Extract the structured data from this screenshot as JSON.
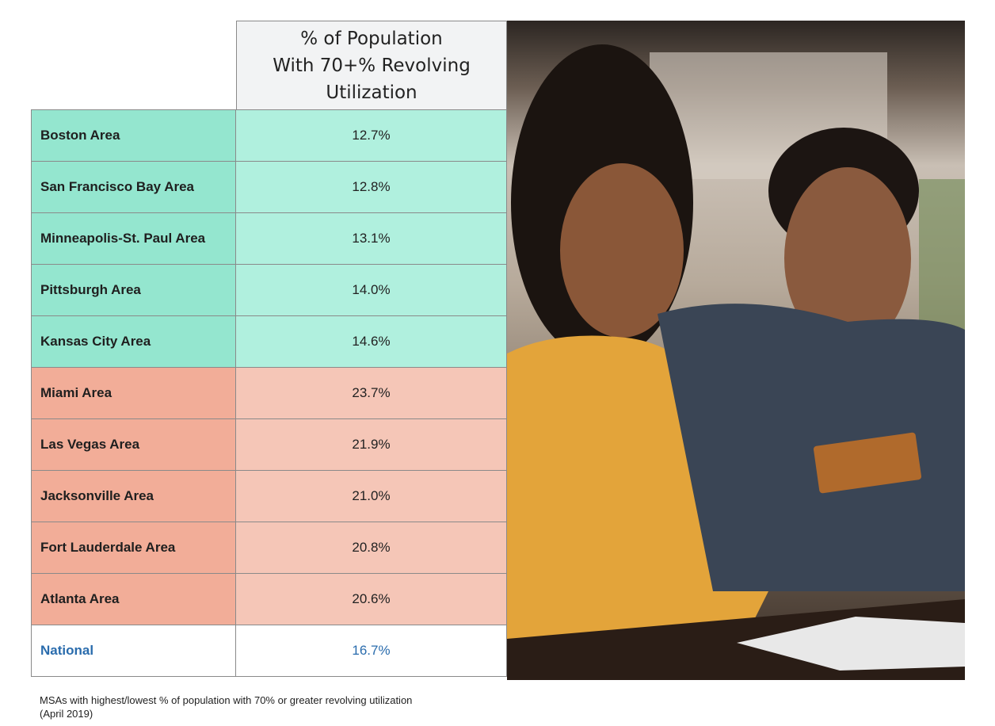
{
  "chart_data": {
    "type": "table",
    "title": "",
    "columns": [
      "",
      "% of Population\nWith 70+% Revolving\nUtilization"
    ],
    "rows": [
      {
        "label": "Boston Area",
        "value": "12.7%",
        "group": "lowest"
      },
      {
        "label": "San Francisco Bay Area",
        "value": "12.8%",
        "group": "lowest"
      },
      {
        "label": "Minneapolis-St. Paul Area",
        "value": "13.1%",
        "group": "lowest"
      },
      {
        "label": "Pittsburgh Area",
        "value": "14.0%",
        "group": "lowest"
      },
      {
        "label": "Kansas City Area",
        "value": "14.6%",
        "group": "lowest"
      },
      {
        "label": "Miami Area",
        "value": "23.7%",
        "group": "highest"
      },
      {
        "label": "Las Vegas Area",
        "value": "21.9%",
        "group": "highest"
      },
      {
        "label": "Jacksonville Area",
        "value": "21.0%",
        "group": "highest"
      },
      {
        "label": "Fort Lauderdale Area",
        "value": "20.8%",
        "group": "highest"
      },
      {
        "label": "Atlanta Area",
        "value": "20.6%",
        "group": "highest"
      },
      {
        "label": "National",
        "value": "16.7%",
        "group": "national"
      }
    ],
    "caption": "MSAs with highest/lowest % of population with 70% or greater revolving utilization\n(April 2019)"
  },
  "colors": {
    "lowest_label": "#94e6cf",
    "lowest_value": "#b0f0de",
    "highest_label": "#f2ad98",
    "highest_value": "#f5c6b7",
    "national_label": "#ffffff",
    "national_value": "#ffffff",
    "national_text": "#2a6cad"
  }
}
